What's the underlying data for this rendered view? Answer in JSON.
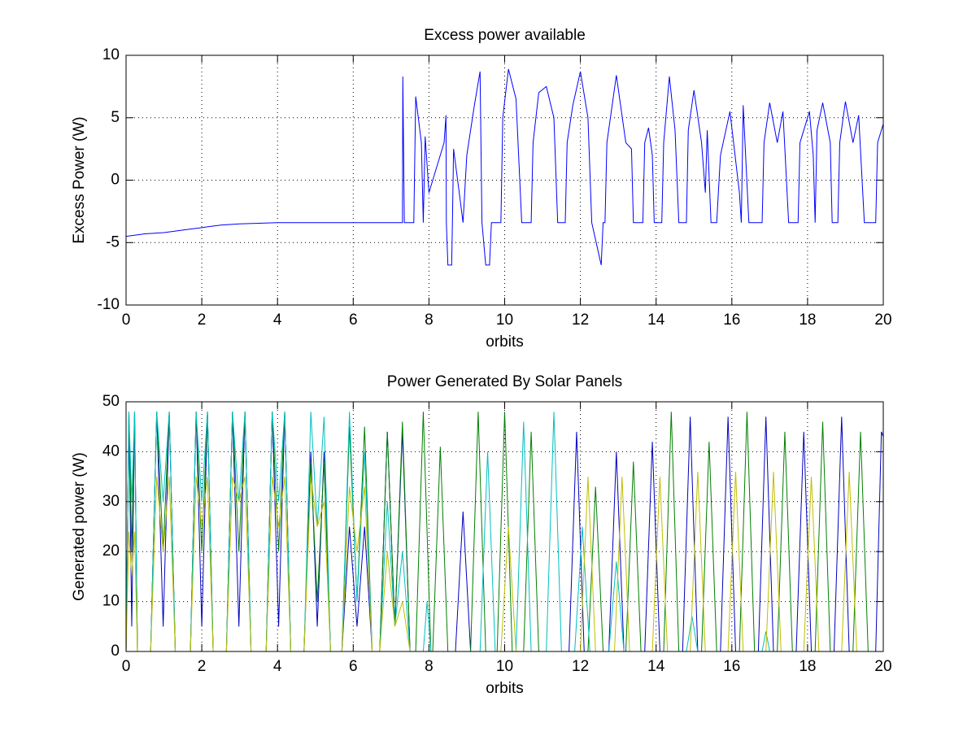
{
  "chart_data": [
    {
      "type": "line",
      "title": "Excess power available",
      "xlabel": "orbits",
      "ylabel": "Excess Power (W)",
      "xlim": [
        0,
        20
      ],
      "xticks": [
        0,
        2,
        4,
        6,
        8,
        10,
        12,
        14,
        16,
        18,
        20
      ],
      "ylim": [
        -10,
        10
      ],
      "yticks": [
        -10,
        -5,
        0,
        5,
        10
      ],
      "grid": true,
      "series": [
        {
          "color": "#0000ff",
          "x": [
            0,
            0.5,
            1,
            1.5,
            2,
            2.5,
            3,
            4,
            5,
            6,
            7,
            7.3,
            7.31,
            7.35,
            7.5,
            7.6,
            7.65,
            7.8,
            7.85,
            7.9,
            8.0,
            8.2,
            8.4,
            8.45,
            8.46,
            8.5,
            8.6,
            8.62,
            8.65,
            8.8,
            8.9,
            9.0,
            9.2,
            9.35,
            9.4,
            9.5,
            9.6,
            9.65,
            9.9,
            9.95,
            10.1,
            10.3,
            10.45,
            10.7,
            10.75,
            10.9,
            11.1,
            11.3,
            11.4,
            11.6,
            11.65,
            11.8,
            12.0,
            12.2,
            12.3,
            12.55,
            12.6,
            12.65,
            12.7,
            12.95,
            13.2,
            13.35,
            13.4,
            13.65,
            13.7,
            13.8,
            13.9,
            13.95,
            14.15,
            14.2,
            14.35,
            14.5,
            14.6,
            14.8,
            14.85,
            15.0,
            15.2,
            15.3,
            15.35,
            15.45,
            15.6,
            15.7,
            15.95,
            16.2,
            16.25,
            16.3,
            16.45,
            16.8,
            16.85,
            17.0,
            17.2,
            17.35,
            17.5,
            17.75,
            17.8,
            18.05,
            18.15,
            18.2,
            18.25,
            18.4,
            18.6,
            18.65,
            18.8,
            18.85,
            19.0,
            19.2,
            19.35,
            19.5,
            19.8,
            19.85,
            20
          ],
          "values": [
            -4.5,
            -4.3,
            -4.2,
            -4.0,
            -3.8,
            -3.6,
            -3.5,
            -3.4,
            -3.4,
            -3.4,
            -3.4,
            -3.4,
            8.3,
            -3.4,
            -3.4,
            -3.4,
            6.7,
            3,
            -3.4,
            3.5,
            -1,
            1,
            3,
            5.2,
            -3.4,
            -6.8,
            -6.8,
            -3.4,
            2.5,
            -1,
            -3.4,
            2,
            6,
            8.7,
            -3.4,
            -6.8,
            -6.8,
            -3.4,
            -3.4,
            5,
            8.9,
            6.5,
            -3.4,
            -3.4,
            3,
            7,
            7.5,
            5,
            -3.4,
            -3.4,
            3,
            6,
            8.7,
            5,
            -3.4,
            -6.8,
            -3.4,
            -3.4,
            3,
            8.4,
            3,
            2.5,
            -3.4,
            -3.4,
            3,
            4.2,
            2,
            -3.4,
            -3.4,
            3,
            8.3,
            4,
            -3.4,
            -3.4,
            4,
            7.2,
            3,
            -1,
            4,
            -3.4,
            -3.4,
            2,
            5.5,
            -1,
            -3.4,
            6,
            -3.4,
            -3.4,
            3,
            6.2,
            3,
            5.5,
            -3.4,
            -3.4,
            3,
            5.5,
            2,
            -3.4,
            4,
            6.2,
            3,
            -3.4,
            -3.4,
            3,
            6.3,
            3,
            5.2,
            -3.4,
            -3.4,
            3,
            4.5
          ]
        }
      ]
    },
    {
      "type": "line",
      "title": "Power Generated By Solar Panels",
      "xlabel": "orbits",
      "ylabel": "Generated power (W)",
      "xlim": [
        0,
        20
      ],
      "xticks": [
        0,
        2,
        4,
        6,
        8,
        10,
        12,
        14,
        16,
        18,
        20
      ],
      "ylim": [
        0,
        50
      ],
      "yticks": [
        0,
        10,
        20,
        30,
        40,
        50
      ],
      "grid": true,
      "series": [
        {
          "color": "#0000bf",
          "x": [
            0,
            0.075,
            0.15,
            0.225,
            0.3,
            0.65,
            0.81,
            0.98,
            1.14,
            1.3,
            1.7,
            1.85,
            2.0,
            2.15,
            2.3,
            2.65,
            2.81,
            2.98,
            3.14,
            3.3,
            3.7,
            3.86,
            4.03,
            4.19,
            4.35,
            4.7,
            4.88,
            5.05,
            5.23,
            5.4,
            5.7,
            5.9,
            6.1,
            6.3,
            6.5,
            6.7,
            6.9,
            7.1,
            7.3,
            7.5,
            8.7,
            8.9,
            9.1,
            11.7,
            11.9,
            12.1,
            12.75,
            12.95,
            13.15,
            13.7,
            13.9,
            14.1,
            14.7,
            14.9,
            15.1,
            15.7,
            15.9,
            16.1,
            16.7,
            16.9,
            17.1,
            17.7,
            17.9,
            18.1,
            18.7,
            18.9,
            19.1,
            19.8,
            19.95,
            20
          ],
          "values": [
            0,
            48,
            5,
            48,
            0,
            0,
            48,
            5,
            48,
            0,
            0,
            48,
            5,
            48,
            0,
            0,
            48,
            5,
            48,
            0,
            0,
            48,
            5,
            48,
            0,
            0,
            40,
            5,
            40,
            0,
            0,
            25,
            5,
            25,
            0,
            0,
            44,
            5,
            44,
            0,
            0,
            28,
            0,
            0,
            44,
            0,
            0,
            40,
            0,
            0,
            42,
            0,
            0,
            47,
            0,
            0,
            47,
            0,
            0,
            47,
            0,
            0,
            44,
            0,
            0,
            47,
            0,
            0,
            44,
            43
          ]
        },
        {
          "color": "#007f00",
          "x": [
            0,
            0.075,
            0.15,
            0.225,
            0.3,
            0.65,
            0.81,
            0.98,
            1.14,
            1.3,
            1.7,
            1.85,
            2.0,
            2.15,
            2.3,
            2.65,
            2.81,
            2.98,
            3.14,
            3.3,
            3.7,
            3.86,
            4.03,
            4.19,
            4.35,
            4.7,
            4.88,
            5.05,
            5.23,
            5.4,
            5.7,
            5.9,
            6.1,
            6.3,
            6.5,
            6.7,
            6.9,
            7.1,
            7.3,
            7.5,
            7.65,
            7.85,
            8.05,
            8.1,
            8.3,
            8.5,
            9.1,
            9.3,
            9.5,
            9.8,
            10.0,
            10.2,
            10.5,
            10.7,
            10.9,
            12.2,
            12.4,
            12.6,
            13.2,
            13.4,
            13.6,
            14.2,
            14.4,
            14.6,
            15.2,
            15.4,
            15.6,
            16.2,
            16.4,
            16.6,
            17.2,
            17.4,
            17.6,
            18.2,
            18.4,
            18.6,
            19.2,
            19.4,
            19.6
          ],
          "values": [
            0,
            48,
            20,
            48,
            0,
            0,
            48,
            20,
            48,
            0,
            0,
            48,
            20,
            48,
            0,
            0,
            48,
            20,
            48,
            0,
            0,
            48,
            20,
            48,
            0,
            0,
            38,
            10,
            38,
            0,
            0,
            45,
            10,
            45,
            0,
            0,
            44,
            5,
            46,
            0,
            0,
            48,
            0,
            0,
            41,
            0,
            0,
            48,
            0,
            0,
            48,
            0,
            0,
            44,
            0,
            0,
            33,
            0,
            0,
            38,
            0,
            0,
            48,
            0,
            0,
            42,
            0,
            0,
            48,
            0,
            0,
            44,
            0,
            0,
            46,
            0,
            0,
            44,
            0
          ]
        },
        {
          "color": "#00bfbf",
          "x": [
            0,
            0.075,
            0.15,
            0.225,
            0.3,
            0.65,
            0.81,
            0.98,
            1.14,
            1.3,
            1.7,
            1.85,
            2.0,
            2.15,
            2.3,
            2.65,
            2.81,
            2.98,
            3.14,
            3.3,
            3.7,
            3.86,
            4.03,
            4.19,
            4.35,
            4.7,
            4.88,
            5.05,
            5.23,
            5.4,
            5.7,
            5.9,
            6.1,
            6.3,
            6.5,
            6.7,
            6.9,
            7.1,
            7.3,
            7.5,
            7.85,
            7.95,
            8.05,
            9.35,
            9.55,
            9.75,
            10.3,
            10.5,
            10.7,
            11.1,
            11.3,
            11.5,
            11.85,
            12.05,
            12.25,
            12.75,
            12.95,
            13.15,
            14.8,
            14.95,
            15.1,
            16.8,
            16.9,
            17.0
          ],
          "values": [
            0,
            48,
            30,
            48,
            0,
            0,
            48,
            30,
            48,
            0,
            0,
            48,
            30,
            48,
            0,
            0,
            48,
            30,
            48,
            0,
            0,
            48,
            30,
            48,
            0,
            0,
            48,
            25,
            47,
            0,
            0,
            48,
            10,
            40,
            0,
            0,
            30,
            5,
            20,
            0,
            0,
            10,
            0,
            0,
            40,
            0,
            0,
            46,
            0,
            0,
            48,
            0,
            0,
            25,
            0,
            0,
            18,
            0,
            0,
            7,
            0,
            0,
            4,
            0
          ]
        },
        {
          "color": "#bfbf00",
          "x": [
            0,
            0.075,
            0.15,
            0.225,
            0.3,
            0.65,
            0.81,
            0.98,
            1.14,
            1.3,
            1.7,
            1.85,
            2.0,
            2.15,
            2.3,
            2.65,
            2.81,
            2.98,
            3.14,
            3.3,
            3.7,
            3.86,
            4.03,
            4.19,
            4.35,
            4.7,
            4.88,
            5.05,
            5.23,
            5.4,
            5.7,
            5.9,
            6.1,
            6.3,
            6.5,
            6.7,
            6.9,
            7.1,
            7.3,
            7.5,
            9.9,
            10.1,
            10.3,
            12.0,
            12.2,
            12.4,
            12.9,
            13.1,
            13.3,
            13.9,
            14.1,
            14.3,
            14.9,
            15.1,
            15.3,
            15.9,
            16.1,
            16.3,
            16.9,
            17.1,
            17.3,
            17.9,
            18.1,
            18.3,
            18.9,
            19.1,
            19.3
          ],
          "values": [
            0,
            24,
            15,
            24,
            0,
            0,
            35,
            20,
            35,
            0,
            0,
            35,
            25,
            35,
            0,
            0,
            35,
            30,
            35,
            0,
            0,
            35,
            25,
            35,
            0,
            0,
            35,
            25,
            30,
            0,
            0,
            33,
            20,
            33,
            0,
            0,
            20,
            5,
            10,
            0,
            0,
            25,
            0,
            0,
            35,
            0,
            0,
            35,
            0,
            0,
            35,
            0,
            0,
            36,
            0,
            0,
            36,
            0,
            0,
            36,
            0,
            0,
            35,
            0,
            0,
            36,
            0
          ]
        }
      ]
    }
  ]
}
